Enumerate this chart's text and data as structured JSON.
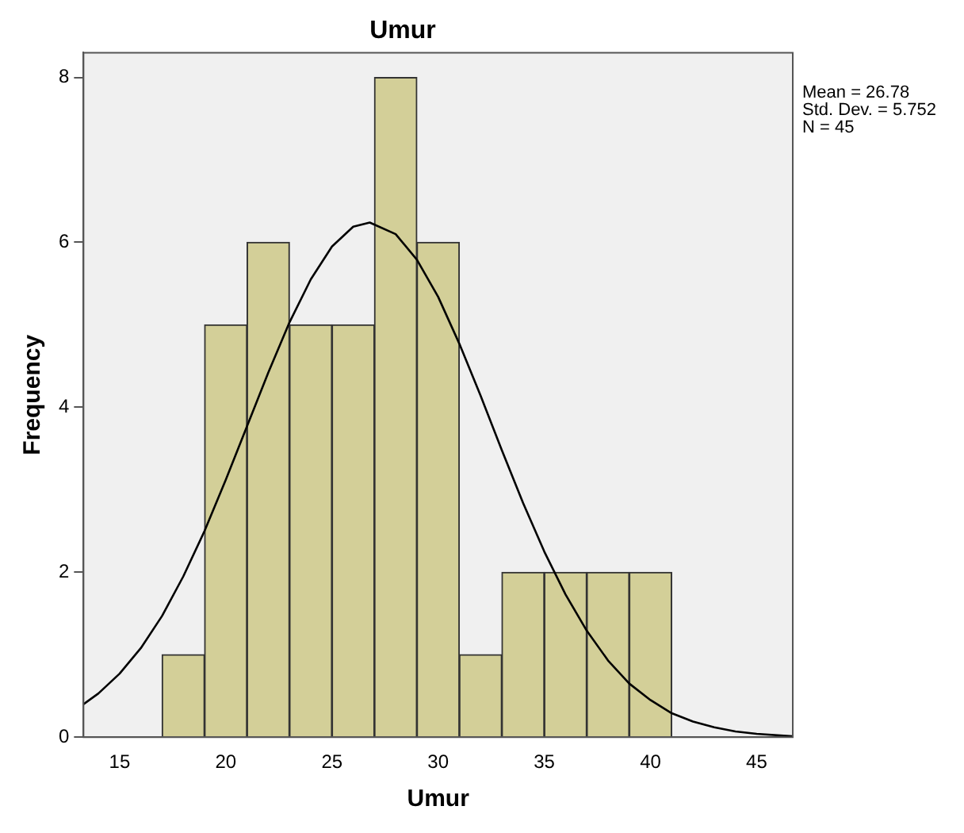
{
  "chart_data": {
    "type": "histogram",
    "title": "Umur",
    "xlabel": "Umur",
    "ylabel": "Frequency",
    "bins": [
      17,
      19,
      21,
      23,
      25,
      27,
      29,
      31,
      33,
      35,
      37,
      39,
      41
    ],
    "values": [
      1,
      5,
      6,
      5,
      5,
      8,
      6,
      1,
      2,
      2,
      2,
      2
    ],
    "color": "#d3cf98",
    "xlim": [
      13.3,
      46.7
    ],
    "xticks": [
      15,
      20,
      25,
      30,
      35,
      40,
      45
    ],
    "ylim": [
      0,
      8.3
    ],
    "yticks": [
      0,
      2,
      4,
      6,
      8
    ],
    "grid": false,
    "legend": false,
    "annotations": [
      "Mean = 26.78",
      "Std. Dev. = 5.752",
      "N = 45"
    ],
    "series": [
      {
        "type": "line",
        "color": "#000000",
        "marker": "none",
        "x": [
          13.3,
          14,
          15,
          16,
          17,
          18,
          19,
          20,
          21,
          22,
          23,
          24,
          25,
          26,
          26.78,
          28,
          29,
          30,
          31,
          32,
          33,
          34,
          35,
          36,
          37,
          38,
          39,
          40,
          41,
          42,
          43,
          44,
          45,
          46.7
        ],
        "values": [
          0.4,
          0.53,
          0.77,
          1.08,
          1.47,
          1.95,
          2.5,
          3.12,
          3.77,
          4.42,
          5.03,
          5.55,
          5.95,
          6.19,
          6.24,
          6.1,
          5.79,
          5.34,
          4.77,
          4.14,
          3.48,
          2.84,
          2.25,
          1.73,
          1.29,
          0.93,
          0.65,
          0.45,
          0.29,
          0.19,
          0.12,
          0.07,
          0.04,
          0.01
        ]
      }
    ]
  }
}
